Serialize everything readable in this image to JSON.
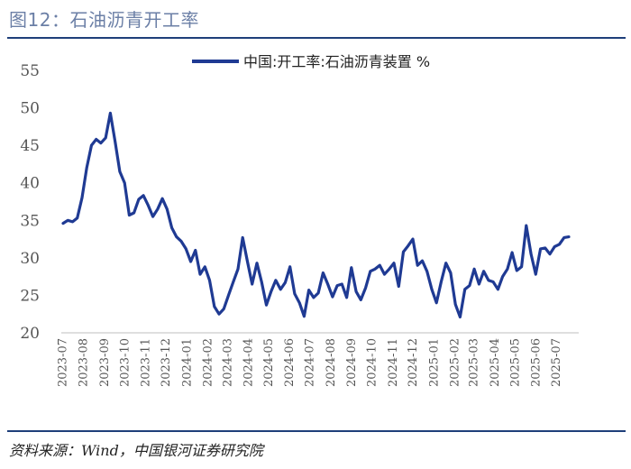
{
  "header": {
    "title": "图12：石油沥青开工率"
  },
  "footer": {
    "source": "资料来源：Wind，中国银河证券研究院"
  },
  "colors": {
    "series": "#1f3a93",
    "rule": "#1f3f7a",
    "title": "#6b7fa6"
  },
  "chart_data": {
    "type": "line",
    "title": "",
    "xlabel": "",
    "ylabel": "",
    "ylim": [
      20,
      55
    ],
    "yticks": [
      20,
      25,
      30,
      35,
      40,
      45,
      50,
      55
    ],
    "grid": false,
    "legend_position": "top-center",
    "x_tick_labels": [
      "2023-07",
      "2023-08",
      "2023-09",
      "2023-10",
      "2023-11",
      "2023-12",
      "2024-01",
      "2024-02",
      "2024-03",
      "2024-04",
      "2024-05",
      "2024-06",
      "2024-07",
      "2024-08",
      "2024-09",
      "2024-10",
      "2024-11",
      "2024-12",
      "2025-01",
      "2025-02",
      "2025-03",
      "2025-04",
      "2025-05",
      "2025-06",
      "2025-07"
    ],
    "x_range": [
      "2023-07-01",
      "2025-07-31"
    ],
    "series": [
      {
        "name": "中国:开工率:石油沥青装置 %",
        "points": [
          [
            "2023-07-01",
            34.6
          ],
          [
            "2023-07-08",
            35.0
          ],
          [
            "2023-07-15",
            34.8
          ],
          [
            "2023-07-22",
            35.3
          ],
          [
            "2023-07-29",
            38.0
          ],
          [
            "2023-08-05",
            42.0
          ],
          [
            "2023-08-12",
            45.0
          ],
          [
            "2023-08-19",
            45.8
          ],
          [
            "2023-08-26",
            45.3
          ],
          [
            "2023-09-02",
            46.0
          ],
          [
            "2023-09-09",
            49.3
          ],
          [
            "2023-09-16",
            45.5
          ],
          [
            "2023-09-23",
            41.5
          ],
          [
            "2023-09-30",
            40.0
          ],
          [
            "2023-10-07",
            35.7
          ],
          [
            "2023-10-14",
            36.0
          ],
          [
            "2023-10-21",
            37.8
          ],
          [
            "2023-10-28",
            38.3
          ],
          [
            "2023-11-04",
            37.0
          ],
          [
            "2023-11-11",
            35.5
          ],
          [
            "2023-11-18",
            36.5
          ],
          [
            "2023-11-25",
            37.9
          ],
          [
            "2023-12-02",
            36.5
          ],
          [
            "2023-12-09",
            34.0
          ],
          [
            "2023-12-16",
            32.8
          ],
          [
            "2023-12-23",
            32.2
          ],
          [
            "2023-12-30",
            31.2
          ],
          [
            "2024-01-06",
            29.5
          ],
          [
            "2024-01-13",
            31.0
          ],
          [
            "2024-01-20",
            27.8
          ],
          [
            "2024-01-27",
            28.8
          ],
          [
            "2024-02-03",
            27.0
          ],
          [
            "2024-02-10",
            23.5
          ],
          [
            "2024-02-17",
            22.5
          ],
          [
            "2024-02-24",
            23.2
          ],
          [
            "2024-03-02",
            25.0
          ],
          [
            "2024-03-09",
            26.8
          ],
          [
            "2024-03-16",
            28.5
          ],
          [
            "2024-03-23",
            32.7
          ],
          [
            "2024-03-30",
            29.5
          ],
          [
            "2024-04-06",
            26.5
          ],
          [
            "2024-04-13",
            29.3
          ],
          [
            "2024-04-20",
            26.8
          ],
          [
            "2024-04-27",
            23.7
          ],
          [
            "2024-05-04",
            25.5
          ],
          [
            "2024-05-11",
            27.0
          ],
          [
            "2024-05-18",
            25.8
          ],
          [
            "2024-05-25",
            26.7
          ],
          [
            "2024-06-01",
            28.8
          ],
          [
            "2024-06-08",
            25.2
          ],
          [
            "2024-06-15",
            24.0
          ],
          [
            "2024-06-22",
            22.2
          ],
          [
            "2024-06-29",
            25.7
          ],
          [
            "2024-07-06",
            24.7
          ],
          [
            "2024-07-13",
            25.3
          ],
          [
            "2024-07-20",
            28.0
          ],
          [
            "2024-07-27",
            26.5
          ],
          [
            "2024-08-03",
            24.8
          ],
          [
            "2024-08-10",
            26.3
          ],
          [
            "2024-08-17",
            26.5
          ],
          [
            "2024-08-24",
            24.7
          ],
          [
            "2024-08-31",
            28.7
          ],
          [
            "2024-09-07",
            25.5
          ],
          [
            "2024-09-14",
            24.4
          ],
          [
            "2024-09-21",
            26.0
          ],
          [
            "2024-09-28",
            28.2
          ],
          [
            "2024-10-05",
            28.5
          ],
          [
            "2024-10-12",
            29.0
          ],
          [
            "2024-10-19",
            27.8
          ],
          [
            "2024-10-26",
            28.5
          ],
          [
            "2024-11-02",
            29.3
          ],
          [
            "2024-11-09",
            26.2
          ],
          [
            "2024-11-16",
            30.8
          ],
          [
            "2024-11-23",
            31.6
          ],
          [
            "2024-11-30",
            32.5
          ],
          [
            "2024-12-07",
            29.0
          ],
          [
            "2024-12-14",
            29.6
          ],
          [
            "2024-12-21",
            28.2
          ],
          [
            "2024-12-28",
            25.8
          ],
          [
            "2025-01-04",
            24.0
          ],
          [
            "2025-01-11",
            26.8
          ],
          [
            "2025-01-18",
            29.3
          ],
          [
            "2025-01-25",
            28.0
          ],
          [
            "2025-02-01",
            23.8
          ],
          [
            "2025-02-08",
            22.1
          ],
          [
            "2025-02-15",
            25.8
          ],
          [
            "2025-02-22",
            26.3
          ],
          [
            "2025-03-01",
            28.5
          ],
          [
            "2025-03-08",
            26.5
          ],
          [
            "2025-03-15",
            28.2
          ],
          [
            "2025-03-22",
            27.0
          ],
          [
            "2025-03-29",
            26.8
          ],
          [
            "2025-04-05",
            25.8
          ],
          [
            "2025-04-12",
            27.5
          ],
          [
            "2025-04-19",
            28.5
          ],
          [
            "2025-04-26",
            30.7
          ],
          [
            "2025-05-03",
            28.3
          ],
          [
            "2025-05-10",
            28.8
          ],
          [
            "2025-05-17",
            34.3
          ],
          [
            "2025-05-24",
            30.5
          ],
          [
            "2025-05-31",
            27.8
          ],
          [
            "2025-06-07",
            31.2
          ],
          [
            "2025-06-14",
            31.3
          ],
          [
            "2025-06-21",
            30.5
          ],
          [
            "2025-06-28",
            31.5
          ],
          [
            "2025-07-05",
            31.8
          ],
          [
            "2025-07-12",
            32.7
          ],
          [
            "2025-07-19",
            32.8
          ]
        ]
      }
    ]
  }
}
